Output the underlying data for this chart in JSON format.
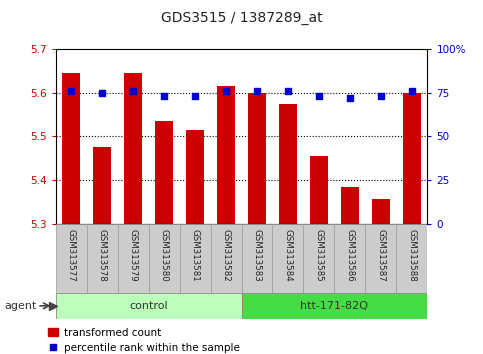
{
  "title": "GDS3515 / 1387289_at",
  "samples": [
    "GSM313577",
    "GSM313578",
    "GSM313579",
    "GSM313580",
    "GSM313581",
    "GSM313582",
    "GSM313583",
    "GSM313584",
    "GSM313585",
    "GSM313586",
    "GSM313587",
    "GSM313588"
  ],
  "bar_values": [
    5.645,
    5.475,
    5.645,
    5.535,
    5.515,
    5.615,
    5.6,
    5.575,
    5.455,
    5.385,
    5.358,
    5.6
  ],
  "percentile_values": [
    76,
    75,
    76,
    73,
    73,
    76,
    76,
    76,
    73,
    72,
    73,
    76
  ],
  "bar_color": "#cc0000",
  "percentile_color": "#0000cc",
  "ylim_left": [
    5.3,
    5.7
  ],
  "ylim_right": [
    0,
    100
  ],
  "yticks_left": [
    5.3,
    5.4,
    5.5,
    5.6,
    5.7
  ],
  "yticks_right": [
    0,
    25,
    50,
    75,
    100
  ],
  "ytick_labels_right": [
    "0",
    "25",
    "50",
    "75",
    "100%"
  ],
  "groups": [
    {
      "label": "control",
      "start": 0,
      "end": 5,
      "color": "#bbffbb"
    },
    {
      "label": "htt-171-82Q",
      "start": 6,
      "end": 11,
      "color": "#44dd44"
    }
  ],
  "agent_label": "agent",
  "legend_bar_label": "transformed count",
  "legend_dot_label": "percentile rank within the sample",
  "bar_color_hex": "#cc0000",
  "percentile_color_hex": "#0000cc",
  "tick_color_left": "#cc0000",
  "tick_color_right": "#0000cc",
  "bar_width": 0.6,
  "label_cell_color": "#cccccc",
  "label_cell_edge": "#999999"
}
